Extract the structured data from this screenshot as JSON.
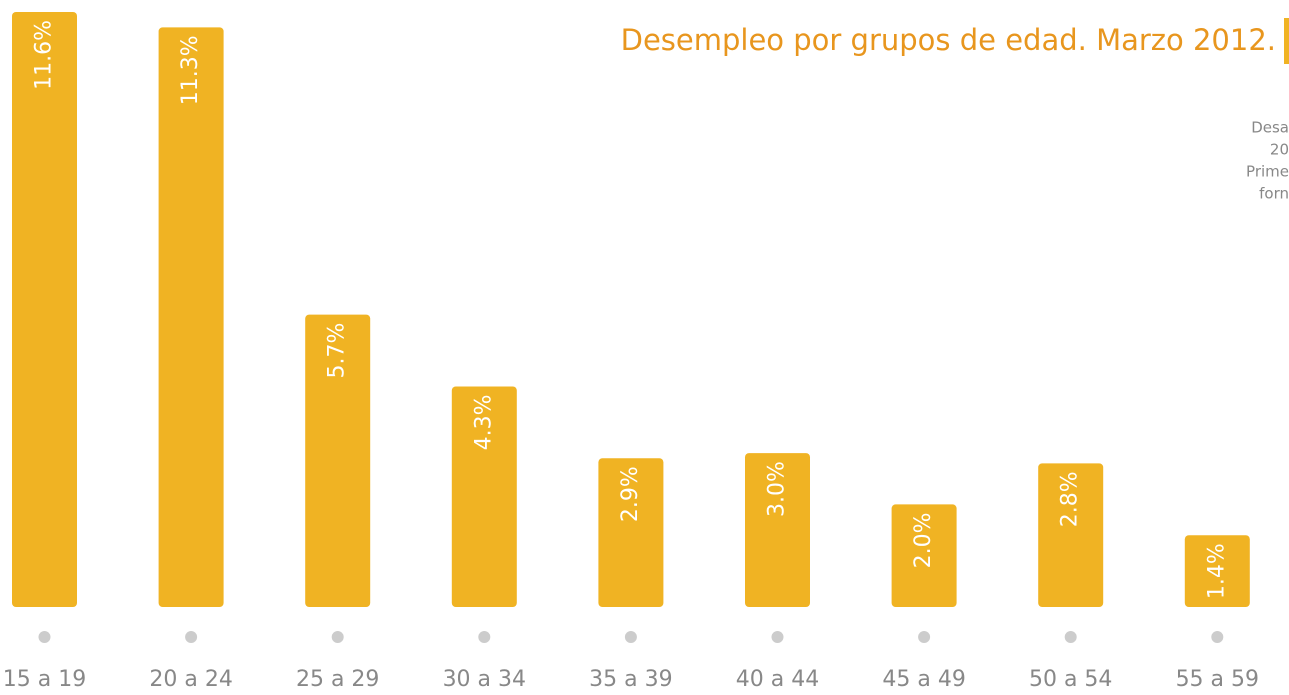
{
  "chart_data": {
    "type": "bar",
    "title": "Desempleo por grupos de edad. Marzo 2012.",
    "annotation": [
      "Desa",
      "20",
      "Prime",
      "forn"
    ],
    "categories": [
      "15 a 19",
      "20 a 24",
      "25 a 29",
      "30 a 34",
      "35 a 39",
      "40 a 44",
      "45 a 49",
      "50 a 54",
      "55 a 59"
    ],
    "values": [
      11.6,
      11.3,
      5.7,
      4.3,
      2.9,
      3.0,
      2.0,
      2.8,
      1.4
    ],
    "value_labels": [
      "11.6%",
      "11.3%",
      "5.7%",
      "4.3%",
      "2.9%",
      "3.0%",
      "2.0%",
      "2.8%",
      "1.4%"
    ],
    "color": "#f0b323"
  }
}
